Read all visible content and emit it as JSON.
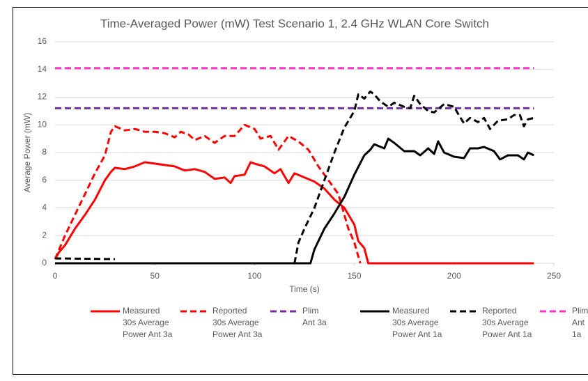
{
  "chart_data": {
    "type": "line",
    "title": "Time-Averaged Power (mW) Test Scenario 1, 2.4 GHz WLAN Core Switch",
    "x_label": "Time (s)",
    "y_label": "Average Power (mW)",
    "xlim": [
      0,
      250
    ],
    "xticks": [
      0,
      50,
      100,
      150,
      200,
      250
    ],
    "ylim": [
      0,
      16
    ],
    "yticks": [
      0,
      2,
      4,
      6,
      8,
      10,
      12,
      14,
      16
    ],
    "grid": true,
    "legend": "bottom",
    "series": [
      {
        "name": "Measured\n30s Average\nPower Ant 3a",
        "color": "#ff0000",
        "dash": false,
        "x": [
          0,
          2,
          5,
          10,
          15,
          20,
          25,
          28,
          30,
          35,
          40,
          45,
          50,
          55,
          60,
          65,
          70,
          75,
          80,
          85,
          88,
          90,
          95,
          98,
          100,
          105,
          110,
          113,
          117,
          120,
          125,
          130,
          135,
          140,
          145,
          150,
          152,
          155,
          157,
          240
        ],
        "values": [
          0.3,
          0.8,
          1.3,
          2.5,
          3.5,
          4.6,
          6,
          6.6,
          6.9,
          6.8,
          7,
          7.3,
          7.2,
          7.1,
          7,
          6.7,
          6.8,
          6.6,
          6.1,
          6.2,
          5.8,
          6.3,
          6.4,
          7.3,
          7.2,
          7,
          6.5,
          6.8,
          5.8,
          6.5,
          6.2,
          5.9,
          5.4,
          4.6,
          4,
          2.8,
          1.6,
          1.1,
          0,
          0
        ]
      },
      {
        "name": "Reported\n30s Average\nPower Ant 3a",
        "color": "#ff0000",
        "dash": true,
        "x": [
          0,
          5,
          10,
          15,
          20,
          25,
          28,
          30,
          35,
          40,
          45,
          50,
          55,
          60,
          63,
          67,
          70,
          75,
          80,
          85,
          90,
          95,
          100,
          103,
          108,
          112,
          117,
          122,
          127,
          132,
          137,
          142,
          147,
          150,
          153
        ],
        "values": [
          0.3,
          2,
          3.5,
          5,
          6.5,
          7.8,
          9.5,
          9.9,
          9.6,
          9.7,
          9.5,
          9.5,
          9.4,
          9.1,
          9.5,
          9.3,
          8.9,
          9.2,
          8.7,
          9.2,
          9.2,
          10,
          9.7,
          9,
          9.2,
          8.2,
          9.2,
          8.8,
          8.2,
          7,
          6,
          5,
          2.5,
          1.5,
          0
        ]
      },
      {
        "name": "Plim\nAnt 3a",
        "color": "#7030a0",
        "dash": true,
        "x": [
          0,
          240
        ],
        "values": [
          11.2,
          11.2
        ]
      },
      {
        "name": "Measured\n30s Average\nPower Ant 1a",
        "color": "#000000",
        "dash": false,
        "x": [
          0,
          128,
          130,
          135,
          140,
          145,
          150,
          155,
          158,
          160,
          165,
          167,
          170,
          175,
          180,
          183,
          187,
          190,
          192,
          195,
          200,
          205,
          208,
          212,
          215,
          220,
          223,
          227,
          232,
          235,
          237,
          240
        ],
        "values": [
          0,
          0,
          1,
          2.5,
          3.6,
          4.8,
          6.4,
          7.8,
          8.2,
          8.6,
          8.3,
          9,
          8.7,
          8.1,
          8.1,
          7.8,
          8.3,
          7.9,
          8.8,
          8,
          7.7,
          7.6,
          8.3,
          8.3,
          8.4,
          8.1,
          7.5,
          7.8,
          7.8,
          7.5,
          8,
          7.8
        ]
      },
      {
        "name": "Reported\n30s Average\nPower Ant 1a",
        "color": "#000000",
        "dash": true,
        "x": [
          0,
          30,
          75,
          120,
          122,
          125,
          130,
          135,
          140,
          145,
          150,
          152,
          155,
          158,
          160,
          163,
          167,
          170,
          175,
          178,
          180,
          183,
          187,
          190,
          195,
          200,
          202,
          205,
          208,
          212,
          215,
          218,
          222,
          227,
          230,
          233,
          235,
          237,
          240
        ],
        "values": [
          0.35,
          0.3,
          null,
          0,
          1.5,
          2.5,
          4,
          6,
          8,
          9.8,
          11,
          12.2,
          11.9,
          12.4,
          12.2,
          11.7,
          11.3,
          11.6,
          11.3,
          11.2,
          12.1,
          11.5,
          11,
          10.9,
          11.5,
          11.3,
          10.8,
          10.1,
          10.5,
          10.2,
          10.5,
          9.7,
          10.3,
          10.4,
          10.7,
          10.7,
          9.9,
          10.4,
          10.5
        ]
      },
      {
        "name": "Plim\nAnt 1a",
        "color": "#ff33cc",
        "dash": true,
        "x": [
          0,
          240
        ],
        "values": [
          14.1,
          14.1
        ]
      }
    ]
  }
}
